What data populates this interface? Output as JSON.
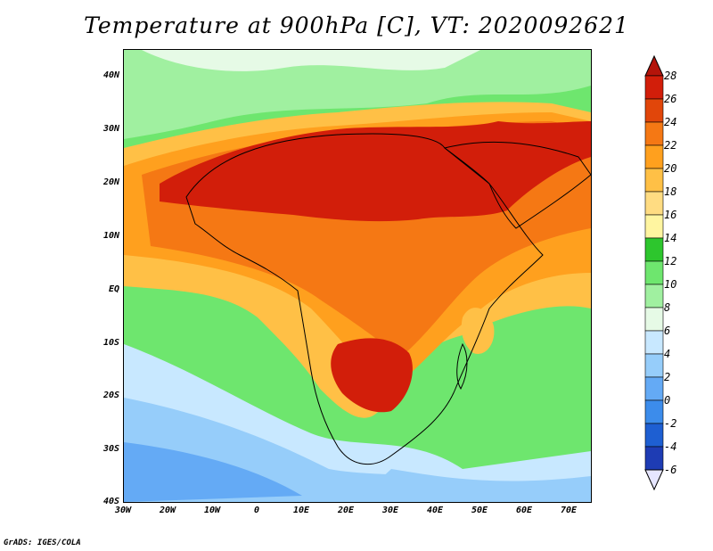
{
  "title": "Temperature at 900hPa [C], VT: 2020092621",
  "map": {
    "lat_labels": [
      "40N",
      "30N",
      "20N",
      "10N",
      "EQ",
      "10S",
      "20S",
      "30S",
      "40S"
    ],
    "lon_labels": [
      "30W",
      "20W",
      "10W",
      "0",
      "10E",
      "20E",
      "30E",
      "40E",
      "50E",
      "60E",
      "70E"
    ],
    "lat_range": [
      -40,
      45
    ],
    "lon_range": [
      -30,
      75
    ]
  },
  "colorbar": {
    "tick_labels": [
      "28",
      "26",
      "24",
      "22",
      "20",
      "18",
      "16",
      "14",
      "12",
      "10",
      "8",
      "6",
      "4",
      "2",
      "0",
      "-2",
      "-4",
      "-6"
    ],
    "colors": [
      "#1a1a9a",
      "#1e3cb4",
      "#1e5fd2",
      "#3c8ceb",
      "#64aaf5",
      "#96cdfa",
      "#c8e8ff",
      "#e6fae6",
      "#a0f0a0",
      "#6ee66e",
      "#2dc62d",
      "#fff5a0",
      "#ffdc82",
      "#ffc046",
      "#ffa01e",
      "#f57814",
      "#e1460a",
      "#d21e0a",
      "#b4140a"
    ],
    "units": "C"
  },
  "credit": "GrADS: IGES/COLA"
}
